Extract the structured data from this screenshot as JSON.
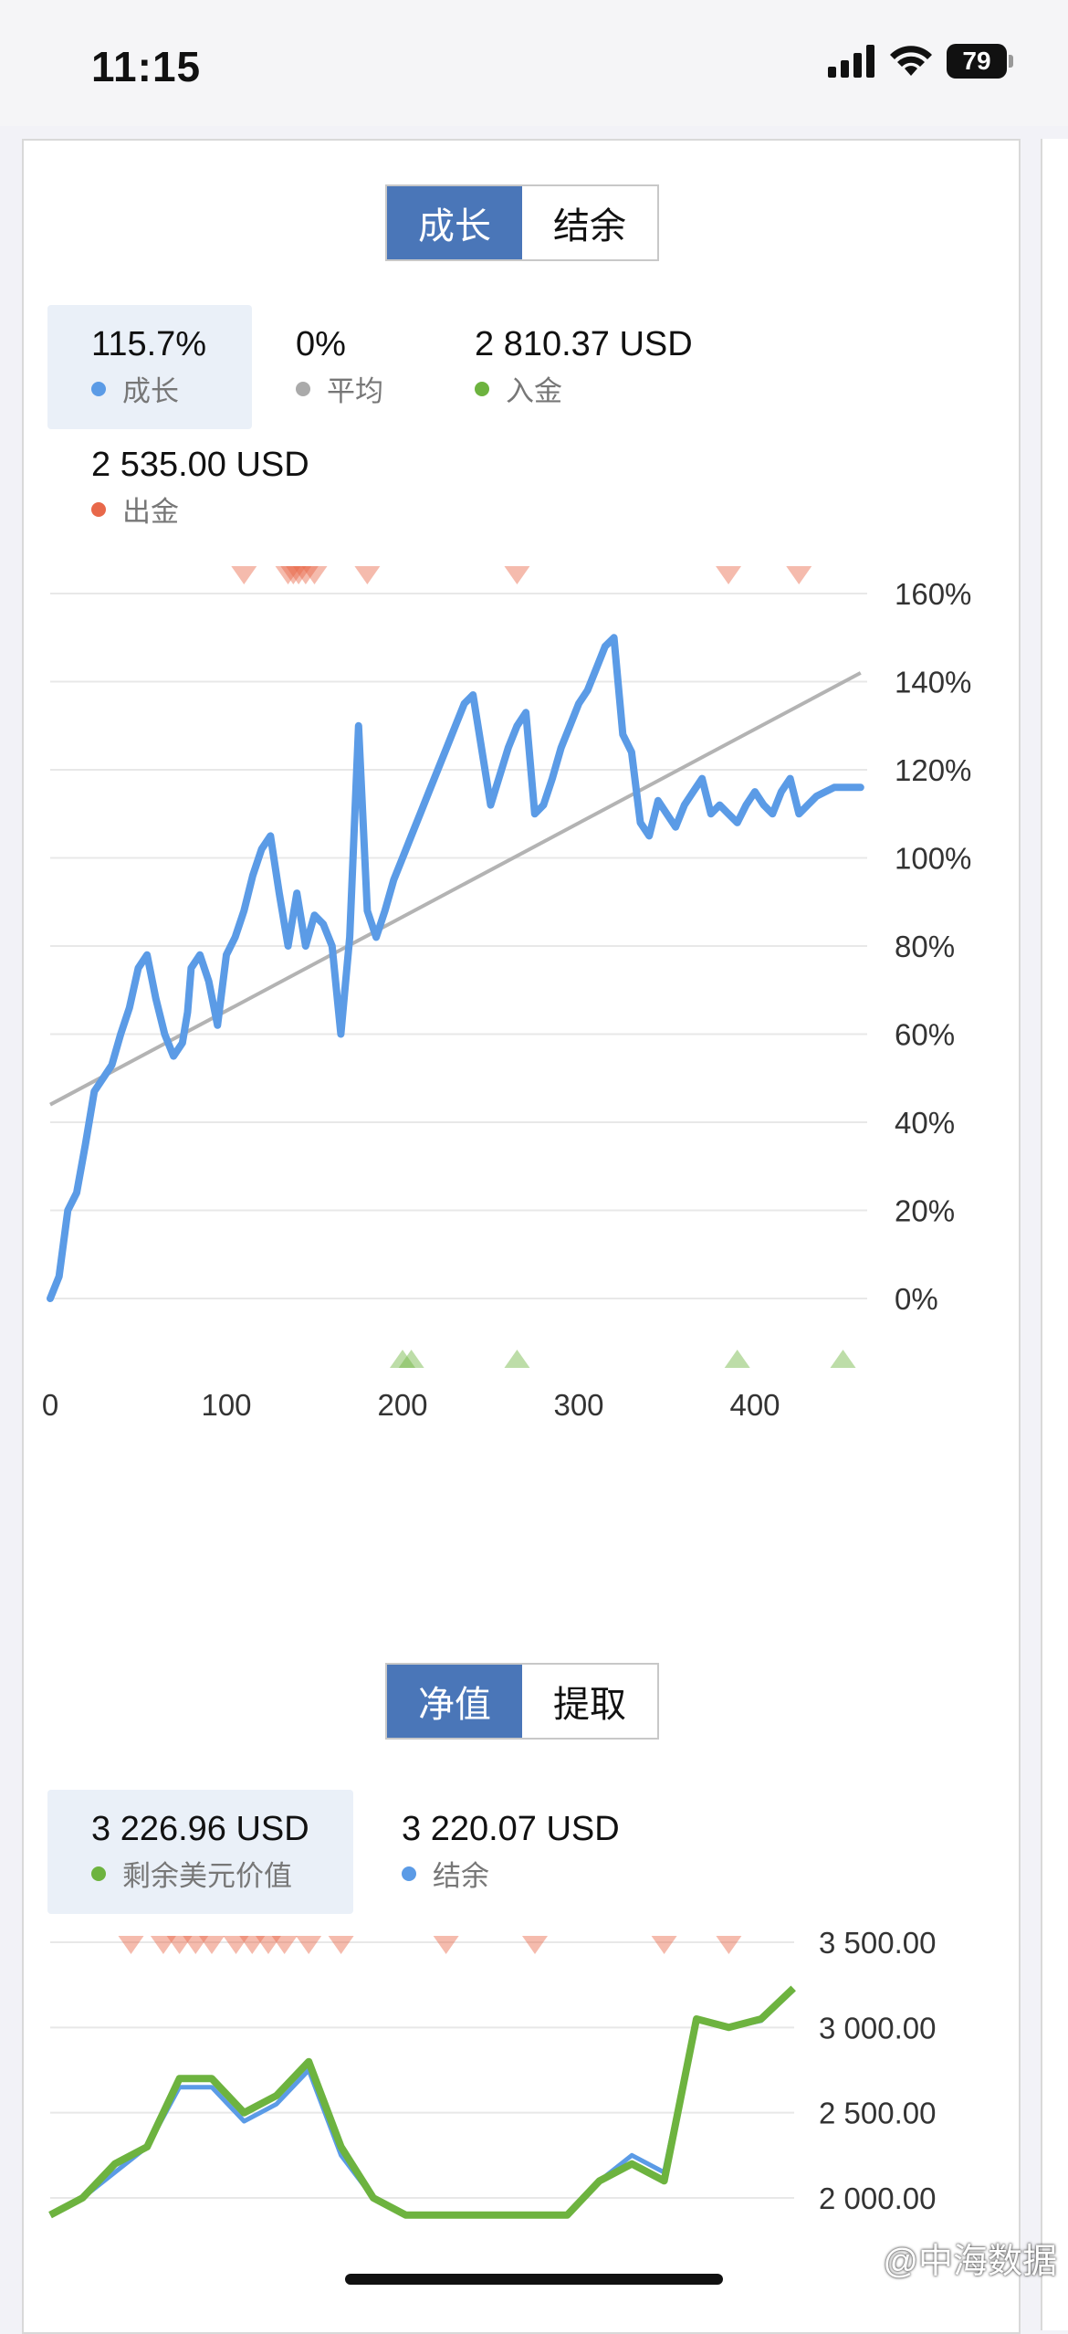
{
  "status_bar": {
    "time": "11:15",
    "battery": "79"
  },
  "growth_section": {
    "tabs": [
      {
        "label": "成长",
        "active": true
      },
      {
        "label": "结余",
        "active": false
      }
    ],
    "stats": [
      {
        "value": "115.7%",
        "label": "成长",
        "color": "#5b9be6"
      },
      {
        "value": "0%",
        "label": "平均",
        "color": "#aaaaaa"
      },
      {
        "value": "2 810.37 USD",
        "label": "入金",
        "color": "#6db33f"
      },
      {
        "value": "2 535.00 USD",
        "label": "出金",
        "color": "#e8684a"
      }
    ]
  },
  "equity_section": {
    "tabs": [
      {
        "label": "净值",
        "active": true
      },
      {
        "label": "提取",
        "active": false
      }
    ],
    "stats": [
      {
        "value": "3 226.96 USD",
        "label": "剩余美元价值",
        "color": "#6db33f"
      },
      {
        "value": "3 220.07 USD",
        "label": "结余",
        "color": "#5b9be6"
      }
    ]
  },
  "chart_data": [
    {
      "type": "line",
      "x_ticks": [
        0,
        100,
        200,
        300,
        400
      ],
      "y_ticks": [
        "0%",
        "20%",
        "40%",
        "60%",
        "80%",
        "100%",
        "120%",
        "140%",
        "160%"
      ],
      "xlim": [
        0,
        460
      ],
      "ylim": [
        -15,
        165
      ],
      "grid": true,
      "series": [
        {
          "color": "#5b9be6",
          "x": [
            0,
            5,
            10,
            15,
            20,
            25,
            30,
            35,
            40,
            45,
            50,
            55,
            60,
            65,
            70,
            75,
            78,
            80,
            85,
            90,
            95,
            100,
            105,
            110,
            115,
            120,
            125,
            130,
            135,
            140,
            145,
            150,
            155,
            160,
            165,
            170,
            175,
            180,
            185,
            190,
            195,
            200,
            205,
            210,
            215,
            220,
            225,
            230,
            235,
            240,
            250,
            260,
            265,
            270,
            275,
            280,
            285,
            290,
            295,
            300,
            305,
            310,
            315,
            320,
            325,
            330,
            335,
            340,
            345,
            350,
            355,
            360,
            365,
            370,
            375,
            380,
            385,
            390,
            395,
            400,
            405,
            410,
            415,
            420,
            425,
            430,
            435,
            440,
            445,
            450,
            455,
            460
          ],
          "y": [
            0,
            5,
            20,
            24,
            35,
            47,
            50,
            53,
            60,
            66,
            75,
            78,
            68,
            60,
            55,
            58,
            65,
            75,
            78,
            72,
            62,
            78,
            82,
            88,
            96,
            102,
            105,
            92,
            80,
            92,
            80,
            87,
            85,
            80,
            60,
            82,
            130,
            88,
            82,
            88,
            95,
            100,
            105,
            110,
            115,
            120,
            125,
            130,
            135,
            137,
            112,
            125,
            130,
            133,
            110,
            112,
            118,
            125,
            130,
            135,
            138,
            143,
            148,
            150,
            128,
            124,
            108,
            105,
            113,
            110,
            107,
            112,
            115,
            118,
            110,
            112,
            110,
            108,
            112,
            115,
            112,
            110,
            115,
            118,
            110,
            112,
            114,
            115,
            116,
            116,
            116,
            116
          ]
        },
        {
          "color": "#b3b3b3",
          "x": [
            0,
            460
          ],
          "y": [
            44,
            142
          ]
        }
      ],
      "markers_top": [
        110,
        135,
        138,
        141,
        145,
        150,
        180,
        265,
        385,
        425
      ],
      "markers_bottom": [
        200,
        205,
        265,
        390,
        450
      ]
    },
    {
      "type": "line",
      "x_ticks": [],
      "y_ticks": [
        "2 000.00",
        "2 500.00",
        "3 000.00",
        "3 500.00"
      ],
      "ylim": [
        1950,
        3600
      ],
      "xlim": [
        0,
        460
      ],
      "grid": true,
      "series": [
        {
          "name": "剩余美元价值",
          "color": "#6db33f",
          "x": [
            0,
            20,
            40,
            60,
            80,
            100,
            120,
            140,
            160,
            180,
            200,
            220,
            240,
            260,
            280,
            300,
            320,
            340,
            360,
            380,
            400,
            420,
            440,
            460
          ],
          "y": [
            1900,
            2000,
            2200,
            2300,
            2700,
            2700,
            2500,
            2600,
            2800,
            2300,
            2000,
            1900,
            1900,
            1900,
            1900,
            1900,
            1900,
            2100,
            2200,
            2100,
            3050,
            3000,
            3050,
            3230
          ]
        },
        {
          "name": "结余",
          "color": "#5b9be6",
          "x": [
            0,
            20,
            40,
            60,
            80,
            100,
            120,
            140,
            160,
            180,
            200,
            220,
            240,
            260,
            280,
            300,
            320,
            340,
            360,
            380,
            400,
            420,
            440,
            460
          ],
          "y": [
            1900,
            2000,
            2150,
            2300,
            2650,
            2650,
            2450,
            2550,
            2750,
            2250,
            2000,
            1900,
            1900,
            1900,
            1900,
            1900,
            1900,
            2100,
            2250,
            2150,
            3050,
            3000,
            3040,
            3220
          ]
        }
      ],
      "markers_top": [
        50,
        70,
        80,
        90,
        100,
        115,
        125,
        135,
        145,
        160,
        180,
        245,
        300,
        380,
        420
      ]
    }
  ],
  "watermark": "@中海数据"
}
